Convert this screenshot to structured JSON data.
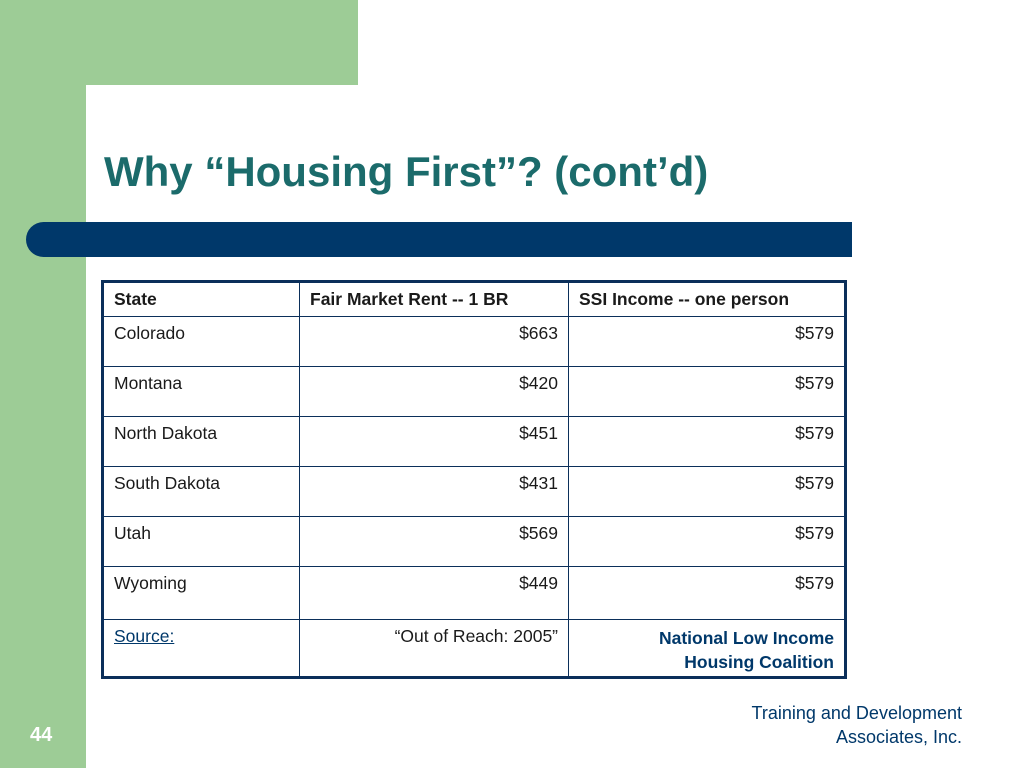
{
  "slide": {
    "title": "Why “Housing First”? (cont’d)",
    "page_number": "44",
    "footer": {
      "line1": "Training and Development",
      "line2": "Associates, Inc."
    }
  },
  "table": {
    "headers": [
      "State",
      "Fair Market Rent -- 1 BR",
      "SSI Income -- one person"
    ],
    "rows": [
      {
        "state": "Colorado",
        "rent": "$663",
        "ssi": "$579"
      },
      {
        "state": "Montana",
        "rent": "$420",
        "ssi": "$579"
      },
      {
        "state": "North Dakota",
        "rent": "$451",
        "ssi": "$579"
      },
      {
        "state": "South Dakota",
        "rent": "$431",
        "ssi": "$579"
      },
      {
        "state": "Utah",
        "rent": "$569",
        "ssi": "$579"
      },
      {
        "state": "Wyoming",
        "rent": "$449",
        "ssi": "$579"
      }
    ],
    "source": {
      "label": "Source:",
      "publication": "“Out of Reach: 2005”",
      "org_line1": "National Low Income",
      "org_line2": "Housing Coalition"
    }
  },
  "colors": {
    "title": "#1b6b6b",
    "accent_bar": "#00386a",
    "side_green": "#9dcc96",
    "table_border": "#0b2f5a"
  }
}
